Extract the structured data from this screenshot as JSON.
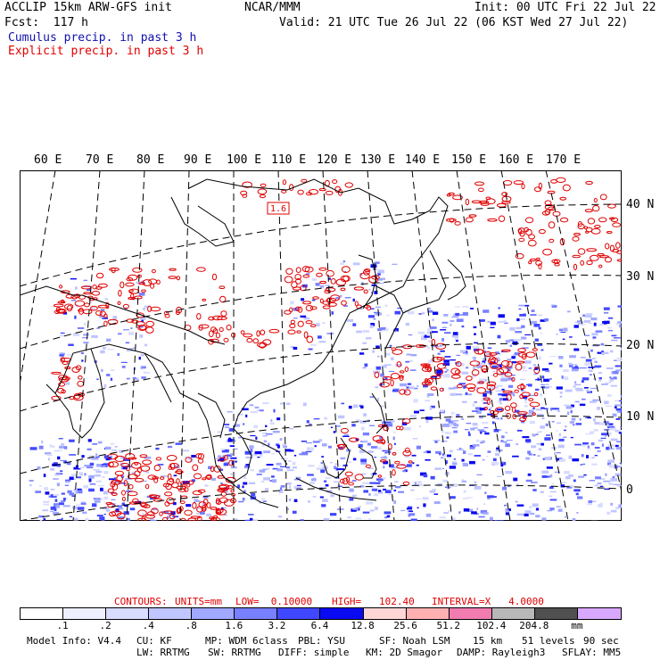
{
  "header": {
    "line1_left": "ACCLIP 15km ARW-GFS init",
    "line1_center": "NCAR/MMM",
    "line1_right": "Init: 00 UTC Fri 22 Jul 22",
    "line2_left": "Fcst:  117 h",
    "line2_right": "Valid: 21 UTC Tue 26 Jul 22 (06 KST Wed 27 Jul 22)",
    "line3": "Cumulus precip. in past 3 h",
    "line4": "Explicit precip. in past 3 h"
  },
  "map": {
    "lon_labels": [
      "60 E",
      "70 E",
      "80 E",
      "90 E",
      "100 E",
      "110 E",
      "120 E",
      "130 E",
      "140 E",
      "150 E",
      "160 E",
      "170 E"
    ],
    "lat_labels": [
      "40 N",
      "30 N",
      "20 N",
      "10 N",
      "0"
    ],
    "max_marker": "1.6"
  },
  "contours_line": {
    "label": "CONTOURS:",
    "units": "UNITS=mm",
    "low": "LOW=  0.10000",
    "high": "HIGH=   102.40",
    "interval": "INTERVAL=X   4.0000"
  },
  "colorbar": {
    "labels": [
      ".1",
      ".2",
      ".4",
      ".8",
      "1.6",
      "3.2",
      "6.4",
      "12.8",
      "25.6",
      "51.2",
      "102.4",
      "204.8",
      "mm"
    ],
    "colors": [
      "#ffffff",
      "#eef0ff",
      "#d8dcff",
      "#c0c6ff",
      "#a0a8ff",
      "#7880ff",
      "#4048ff",
      "#0a0af0",
      "#ffd6d6",
      "#ffb0b0",
      "#f07cb0",
      "#b8b8b8",
      "#505050",
      "#d8a8ff"
    ]
  },
  "footer": {
    "line1": {
      "model": "Model Info: V4.4",
      "cu": "CU: KF",
      "mp": "MP: WDM 6class",
      "pbl": "PBL: YSU",
      "sf": "SF: Noah LSM",
      "res": "15 km",
      "levels": "51 levels",
      "dt": "90 sec"
    },
    "line2": {
      "lw": "LW: RRTMG",
      "sw": "SW: RRTMG",
      "diff": "DIFF: simple",
      "km": "KM: 2D Smagor",
      "damp": "DAMP: Rayleigh3",
      "sflay": "SFLAY: MM5"
    }
  }
}
